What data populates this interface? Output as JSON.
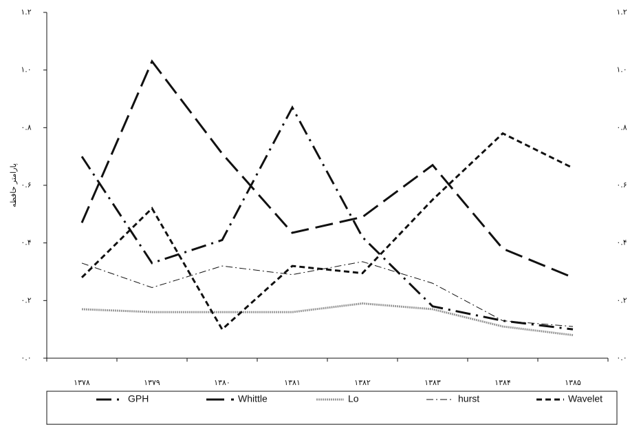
{
  "chart_data": {
    "type": "line",
    "y_label": "پارامتر حافظه",
    "categories": [
      "۱۳۷۸",
      "۱۳۷۹",
      "۱۳۸۰",
      "۱۳۸۱",
      "۱۳۸۲",
      "۱۳۸۳",
      "۱۳۸۴",
      "۱۳۸۵"
    ],
    "ylim": [
      0,
      1.2
    ],
    "yticks": [
      {
        "value": 0,
        "label": "۰.۰"
      },
      {
        "value": 0.2,
        "label": "۰.۲"
      },
      {
        "value": 0.4,
        "label": "۰.۴"
      },
      {
        "value": 0.6,
        "label": "۰.۶"
      },
      {
        "value": 0.8,
        "label": "۰.۸"
      },
      {
        "value": 1.0,
        "label": "۱.۰"
      },
      {
        "value": 1.2,
        "label": "۱.۲"
      }
    ],
    "series": [
      {
        "name": "GPH",
        "color": "#111111",
        "values": [
          0.7,
          0.33,
          0.41,
          0.87,
          0.42,
          0.18,
          0.13,
          0.1
        ]
      },
      {
        "name": "Whittle",
        "color": "#111111",
        "values": [
          0.47,
          1.03,
          0.71,
          0.435,
          0.49,
          0.67,
          0.38,
          0.28
        ]
      },
      {
        "name": "Lo",
        "color": "#999999",
        "values": [
          0.17,
          0.16,
          0.16,
          0.16,
          0.19,
          0.17,
          0.11,
          0.08
        ]
      },
      {
        "name": "hurst",
        "color": "#111111",
        "values": [
          0.33,
          0.245,
          0.32,
          0.29,
          0.335,
          0.26,
          0.13,
          0.11
        ]
      },
      {
        "name": "Wavelet",
        "color": "#111111",
        "values": [
          0.28,
          0.52,
          0.1,
          0.32,
          0.295,
          0.55,
          0.78,
          0.66
        ]
      }
    ]
  }
}
